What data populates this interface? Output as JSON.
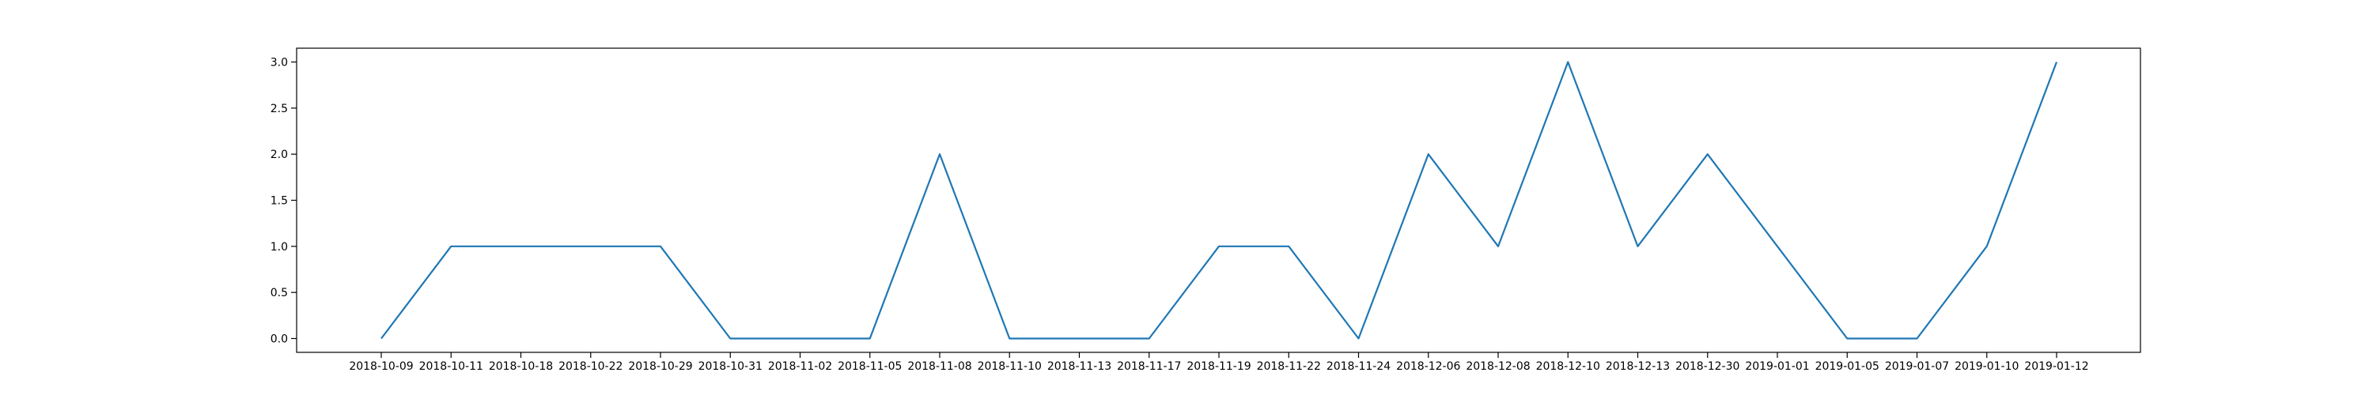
{
  "chart_data": {
    "type": "line",
    "title": "",
    "xlabel": "",
    "ylabel": "",
    "categories": [
      "2018-10-09",
      "2018-10-11",
      "2018-10-18",
      "2018-10-22",
      "2018-10-29",
      "2018-10-31",
      "2018-11-02",
      "2018-11-05",
      "2018-11-08",
      "2018-11-10",
      "2018-11-13",
      "2018-11-17",
      "2018-11-19",
      "2018-11-22",
      "2018-11-24",
      "2018-12-06",
      "2018-12-08",
      "2018-12-10",
      "2018-12-13",
      "2018-12-30",
      "2019-01-01",
      "2019-01-05",
      "2019-01-07",
      "2019-01-10",
      "2019-01-12"
    ],
    "series": [
      {
        "values": [
          0,
          1,
          1,
          1,
          1,
          0,
          0,
          0,
          2,
          0,
          0,
          0,
          1,
          1,
          0,
          2,
          1,
          3,
          1,
          2,
          1,
          0,
          0,
          1,
          3
        ],
        "color": "#1f77b4"
      }
    ],
    "ylim": [
      -0.15,
      3.15
    ],
    "yticks": [
      "0.0",
      "0.5",
      "1.0",
      "1.5",
      "2.0",
      "2.5",
      "3.0"
    ],
    "grid": false,
    "legend": "none"
  }
}
